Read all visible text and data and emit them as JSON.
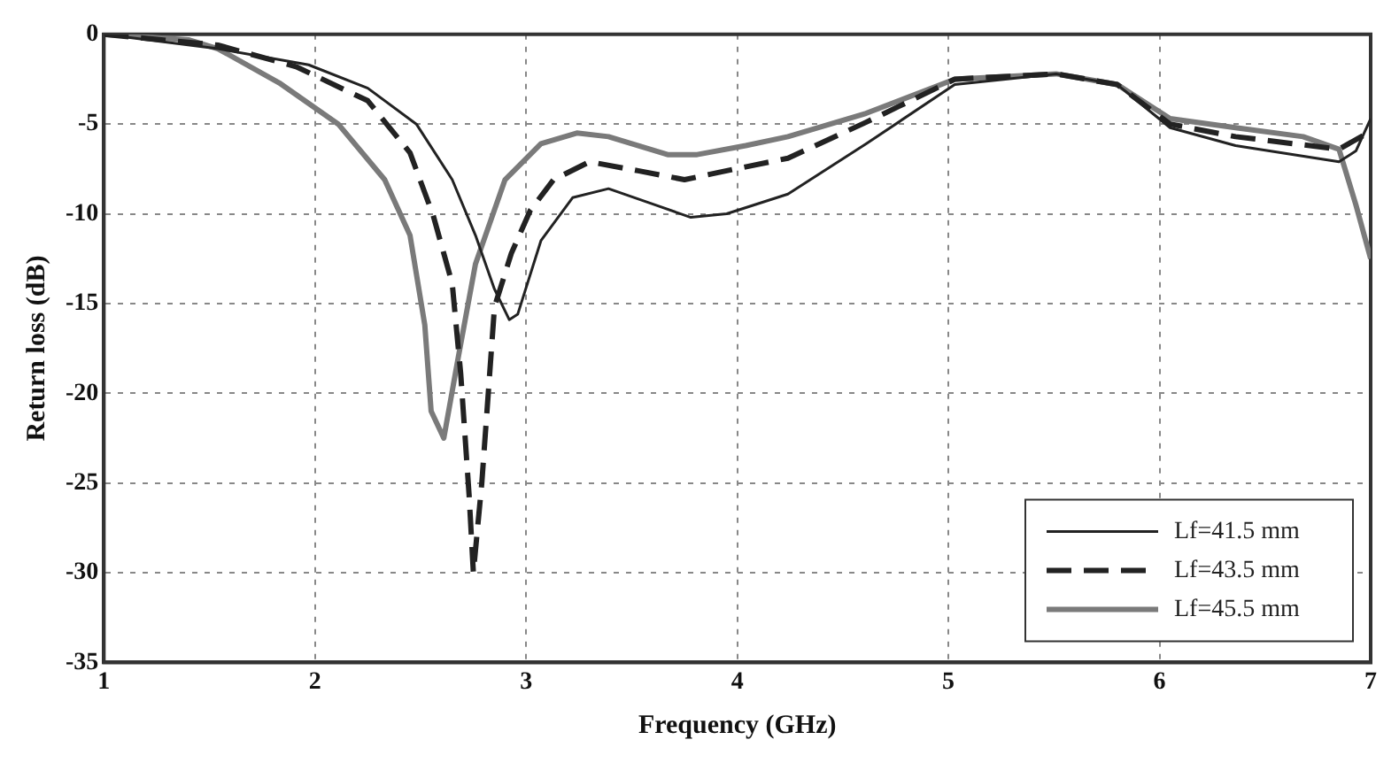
{
  "chart_data": {
    "type": "line",
    "xlabel": "Frequency (GHz)",
    "ylabel": "Return loss (dB)",
    "xlim": [
      1,
      7
    ],
    "xticks": [
      1,
      2,
      3,
      4,
      5,
      6,
      7
    ],
    "ylim": [
      -35,
      0
    ],
    "yticks": [
      -35,
      -30,
      -25,
      -20,
      -15,
      -10,
      -5,
      0
    ],
    "grid": true,
    "legend": "bottom right",
    "marker": "none",
    "series": [
      {
        "name": "Lf=41.5 mm",
        "color": "#222222",
        "line_style": "solid",
        "x": [
          1,
          1.54,
          1.97,
          2.25,
          2.48,
          2.65,
          2.76,
          2.85,
          2.92,
          2.96,
          3.07,
          3.22,
          3.39,
          3.61,
          3.78,
          3.95,
          4.24,
          4.61,
          5.03,
          5.51,
          5.8,
          6.05,
          6.36,
          6.85,
          6.93,
          7
        ],
        "values": [
          0,
          -0.8,
          -1.7,
          -3,
          -5,
          -8.1,
          -11.2,
          -14.2,
          -15.9,
          -15.6,
          -11.5,
          -9.1,
          -8.6,
          -9.5,
          -10.2,
          -10,
          -8.9,
          -6.1,
          -2.8,
          -2.2,
          -2.8,
          -5.2,
          -6.2,
          -7.1,
          -6.5,
          -4.7
        ]
      },
      {
        "name": "Lf=43.5 mm",
        "color": "#222222",
        "line_style": "dashed",
        "x": [
          1,
          1.54,
          1.91,
          2.25,
          2.45,
          2.56,
          2.65,
          2.69,
          2.73,
          2.75,
          2.79,
          2.85,
          2.93,
          3.02,
          3.13,
          3.3,
          3.53,
          3.75,
          3.95,
          4.24,
          4.61,
          5.03,
          5.51,
          5.8,
          6.05,
          6.36,
          6.85,
          7
        ],
        "values": [
          0,
          -0.6,
          -1.8,
          -3.7,
          -6.6,
          -10.1,
          -13.9,
          -18.9,
          -25.7,
          -30,
          -25,
          -15.2,
          -12.2,
          -9.8,
          -8.1,
          -7.1,
          -7.6,
          -8.1,
          -7.6,
          -6.9,
          -4.9,
          -2.5,
          -2.2,
          -2.8,
          -5,
          -5.7,
          -6.4,
          -5.4
        ]
      },
      {
        "name": "Lf=45.5 mm",
        "color": "#7a7a7a",
        "line_style": "solid",
        "x": [
          1,
          1.4,
          1.54,
          1.83,
          2.11,
          2.33,
          2.45,
          2.52,
          2.55,
          2.61,
          2.68,
          2.76,
          2.9,
          3.07,
          3.24,
          3.39,
          3.67,
          3.81,
          4.04,
          4.24,
          4.61,
          5.03,
          5.51,
          5.8,
          6.05,
          6.36,
          6.68,
          6.85,
          6.93,
          7
        ],
        "values": [
          0,
          -0.3,
          -0.8,
          -2.7,
          -5,
          -8.1,
          -11.2,
          -16.2,
          -21,
          -22.5,
          -17.9,
          -12.8,
          -8.1,
          -6.1,
          -5.5,
          -5.7,
          -6.7,
          -6.7,
          -6.2,
          -5.7,
          -4.4,
          -2.5,
          -2.2,
          -2.8,
          -4.7,
          -5.2,
          -5.7,
          -6.4,
          -9.5,
          -12.5
        ]
      }
    ]
  }
}
